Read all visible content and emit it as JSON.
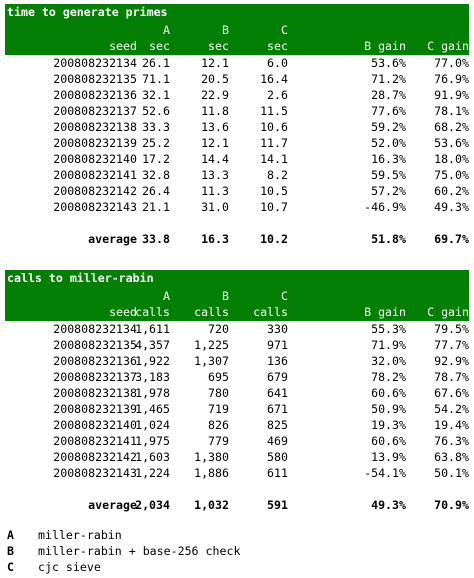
{
  "sections": [
    {
      "title": "time to generate primes",
      "header_top": [
        "A",
        "B",
        "C"
      ],
      "header_bottom": [
        "seed",
        "sec",
        "sec",
        "sec",
        "B gain",
        "C gain"
      ],
      "rows": [
        [
          "200808232134",
          "26.1",
          "12.1",
          "6.0",
          "53.6%",
          "77.0%"
        ],
        [
          "200808232135",
          "71.1",
          "20.5",
          "16.4",
          "71.2%",
          "76.9%"
        ],
        [
          "200808232136",
          "32.1",
          "22.9",
          "2.6",
          "28.7%",
          "91.9%"
        ],
        [
          "200808232137",
          "52.6",
          "11.8",
          "11.5",
          "77.6%",
          "78.1%"
        ],
        [
          "200808232138",
          "33.3",
          "13.6",
          "10.6",
          "59.2%",
          "68.2%"
        ],
        [
          "200808232139",
          "25.2",
          "12.1",
          "11.7",
          "52.0%",
          "53.6%"
        ],
        [
          "200808232140",
          "17.2",
          "14.4",
          "14.1",
          "16.3%",
          "18.0%"
        ],
        [
          "200808232141",
          "32.8",
          "13.3",
          "8.2",
          "59.5%",
          "75.0%"
        ],
        [
          "200808232142",
          "26.4",
          "11.3",
          "10.5",
          "57.2%",
          "60.2%"
        ],
        [
          "200808232143",
          "21.1",
          "31.0",
          "10.7",
          "-46.9%",
          "49.3%"
        ]
      ],
      "summary": [
        "average",
        "33.8",
        "16.3",
        "10.2",
        "51.8%",
        "69.7%"
      ]
    },
    {
      "title": "calls to miller-rabin",
      "header_top": [
        "A",
        "B",
        "C"
      ],
      "header_bottom": [
        "seed",
        "calls",
        "calls",
        "calls",
        "B gain",
        "C gain"
      ],
      "rows": [
        [
          "200808232134",
          "1,611",
          "720",
          "330",
          "55.3%",
          "79.5%"
        ],
        [
          "200808232135",
          "4,357",
          "1,225",
          "971",
          "71.9%",
          "77.7%"
        ],
        [
          "200808232136",
          "1,922",
          "1,307",
          "136",
          "32.0%",
          "92.9%"
        ],
        [
          "200808232137",
          "3,183",
          "695",
          "679",
          "78.2%",
          "78.7%"
        ],
        [
          "200808232138",
          "1,978",
          "780",
          "641",
          "60.6%",
          "67.6%"
        ],
        [
          "200808232139",
          "1,465",
          "719",
          "671",
          "50.9%",
          "54.2%"
        ],
        [
          "200808232140",
          "1,024",
          "826",
          "825",
          "19.3%",
          "19.4%"
        ],
        [
          "200808232141",
          "1,975",
          "779",
          "469",
          "60.6%",
          "76.3%"
        ],
        [
          "200808232142",
          "1,603",
          "1,380",
          "580",
          "13.9%",
          "63.8%"
        ],
        [
          "200808232143",
          "1,224",
          "1,886",
          "611",
          "-54.1%",
          "50.1%"
        ]
      ],
      "summary": [
        "average",
        "2,034",
        "1,032",
        "591",
        "49.3%",
        "70.9%"
      ]
    }
  ],
  "legend": [
    {
      "key": "A",
      "text": "miller-rabin"
    },
    {
      "key": "B",
      "text": "miller-rabin + base-256 check"
    },
    {
      "key": "C",
      "text": "cjc sieve"
    }
  ]
}
